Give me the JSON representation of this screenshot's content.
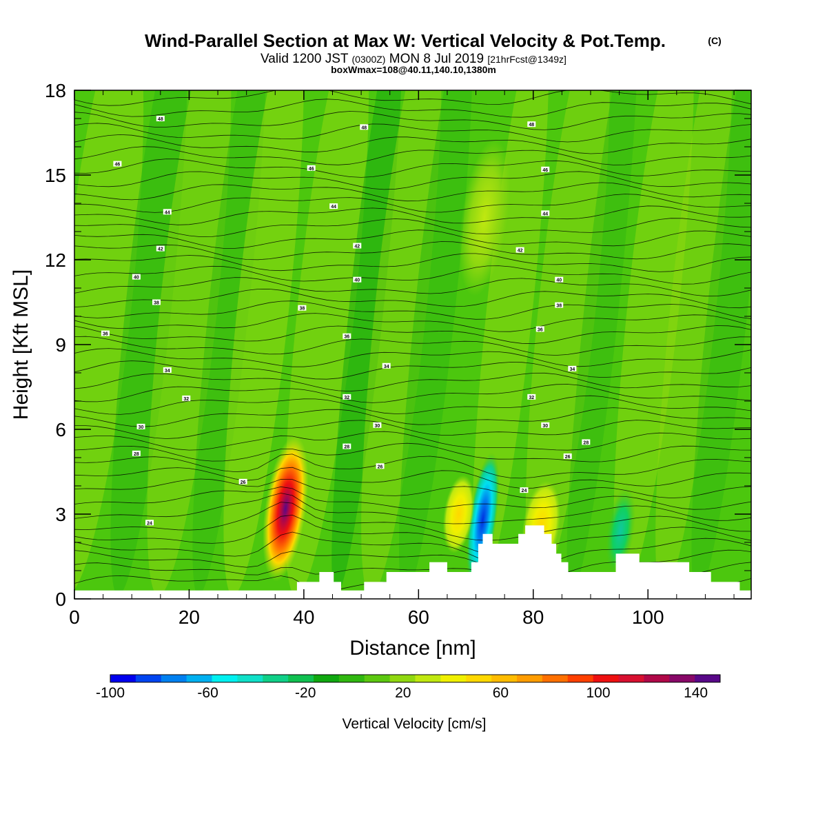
{
  "header": {
    "title": "Wind-Parallel Section at Max W: Vertical Velocity & Pot.Temp.",
    "copyright": "(C)",
    "valid_a": "Valid 1200 JST",
    "valid_b": "(0300Z)",
    "valid_c": "MON 8 Jul 2019",
    "valid_d": "[21hrFcst@1349z]",
    "box": "boxWmax=108@40.11,140.10,1380m"
  },
  "colors": {
    "background_green": "#4cc70e",
    "updraft_red": "#e01010",
    "downdraft_blue": "#1040e0",
    "terrain": "#ffffff",
    "contour": "#000000"
  },
  "chart_data": {
    "type": "heatmap",
    "xlabel": "Distance [nm]",
    "ylabel": "Height [Kft MSL]",
    "xlim": [
      0,
      118
    ],
    "ylim": [
      0,
      18
    ],
    "x_ticks": [
      "0",
      "20",
      "40",
      "60",
      "80",
      "100"
    ],
    "y_ticks": [
      "0",
      "3",
      "6",
      "9",
      "12",
      "15",
      "18"
    ],
    "colorbar": {
      "label": "Vertical Velocity [cm/s]",
      "range": [
        -100,
        150
      ],
      "tick_labels": [
        "-100",
        "-60",
        "-20",
        "20",
        "60",
        "100",
        "140"
      ],
      "colors": [
        "#0000ee",
        "#0044f0",
        "#0080f0",
        "#00b0f0",
        "#00f0f0",
        "#10e0c8",
        "#10d088",
        "#10c050",
        "#10a810",
        "#30b810",
        "#5cc810",
        "#90d810",
        "#c0e810",
        "#f0f000",
        "#ffd800",
        "#ffbc00",
        "#ff9c00",
        "#ff7000",
        "#ff4000",
        "#ee1010",
        "#d81030",
        "#b00848",
        "#880868",
        "#580888"
      ]
    },
    "terrain_nm_kft": [
      [
        0,
        0.3
      ],
      [
        38.8,
        0.3
      ],
      [
        38.8,
        0.6
      ],
      [
        42.7,
        0.6
      ],
      [
        42.7,
        0.95
      ],
      [
        45.2,
        0.95
      ],
      [
        45.2,
        0.6
      ],
      [
        46.5,
        0.6
      ],
      [
        46.5,
        0.3
      ],
      [
        50.5,
        0.3
      ],
      [
        50.5,
        0.6
      ],
      [
        54.4,
        0.6
      ],
      [
        54.4,
        0.95
      ],
      [
        61.9,
        0.95
      ],
      [
        61.9,
        1.3
      ],
      [
        65,
        1.3
      ],
      [
        65,
        0.95
      ],
      [
        69.2,
        0.95
      ],
      [
        69.2,
        1.3
      ],
      [
        70.4,
        1.3
      ],
      [
        70.4,
        1.95
      ],
      [
        71.2,
        1.95
      ],
      [
        71.2,
        2.3
      ],
      [
        72.9,
        2.3
      ],
      [
        72.9,
        1.95
      ],
      [
        77.4,
        1.95
      ],
      [
        77.4,
        2.3
      ],
      [
        78.6,
        2.3
      ],
      [
        78.6,
        2.6
      ],
      [
        81.9,
        2.6
      ],
      [
        81.9,
        2.3
      ],
      [
        83.2,
        2.3
      ],
      [
        83.2,
        1.95
      ],
      [
        84.0,
        1.95
      ],
      [
        84.0,
        1.6
      ],
      [
        84.9,
        1.6
      ],
      [
        84.9,
        1.3
      ],
      [
        86.1,
        1.3
      ],
      [
        86.1,
        0.95
      ],
      [
        94.4,
        0.95
      ],
      [
        94.4,
        1.6
      ],
      [
        98.5,
        1.6
      ],
      [
        98.5,
        1.3
      ],
      [
        107.2,
        1.3
      ],
      [
        107.2,
        0.95
      ],
      [
        111,
        0.95
      ],
      [
        111,
        0.6
      ],
      [
        116,
        0.6
      ],
      [
        116,
        0.3
      ],
      [
        118,
        0.3
      ]
    ],
    "updraft_cores": [
      {
        "x": 36.8,
        "y": 3.2,
        "w": 140
      },
      {
        "x": 71.2,
        "y": 2.8,
        "w": -80
      },
      {
        "x": 81.4,
        "y": 2.6,
        "w": 40
      },
      {
        "x": 95.2,
        "y": 2.4,
        "w": -40
      },
      {
        "x": 71.5,
        "y": 13.5,
        "w": 25
      },
      {
        "x": 67.0,
        "y": 3.0,
        "w": 30
      }
    ],
    "theta_labels": [
      {
        "x": 15,
        "y": 17.0,
        "v": "48"
      },
      {
        "x": 50.5,
        "y": 16.7,
        "v": "48"
      },
      {
        "x": 79.7,
        "y": 16.8,
        "v": "48"
      },
      {
        "x": 7.5,
        "y": 15.4,
        "v": "46"
      },
      {
        "x": 41.3,
        "y": 15.25,
        "v": "46"
      },
      {
        "x": 82.1,
        "y": 15.2,
        "v": "46"
      },
      {
        "x": 16.2,
        "y": 13.7,
        "v": "44"
      },
      {
        "x": 45.2,
        "y": 13.9,
        "v": "44"
      },
      {
        "x": 82.1,
        "y": 13.65,
        "v": "44"
      },
      {
        "x": 15,
        "y": 12.4,
        "v": "42"
      },
      {
        "x": 49.3,
        "y": 12.5,
        "v": "42"
      },
      {
        "x": 77.7,
        "y": 12.35,
        "v": "42"
      },
      {
        "x": 10.8,
        "y": 11.4,
        "v": "40"
      },
      {
        "x": 49.3,
        "y": 11.3,
        "v": "40"
      },
      {
        "x": 84.5,
        "y": 11.3,
        "v": "40"
      },
      {
        "x": 14.3,
        "y": 10.5,
        "v": "38"
      },
      {
        "x": 39.7,
        "y": 10.3,
        "v": "38"
      },
      {
        "x": 84.5,
        "y": 10.4,
        "v": "38"
      },
      {
        "x": 5.4,
        "y": 9.4,
        "v": "36"
      },
      {
        "x": 47.5,
        "y": 9.3,
        "v": "36"
      },
      {
        "x": 81.2,
        "y": 9.55,
        "v": "36"
      },
      {
        "x": 16.2,
        "y": 8.1,
        "v": "34"
      },
      {
        "x": 54.4,
        "y": 8.25,
        "v": "34"
      },
      {
        "x": 86.8,
        "y": 8.15,
        "v": "34"
      },
      {
        "x": 19.5,
        "y": 7.1,
        "v": "32"
      },
      {
        "x": 47.5,
        "y": 7.15,
        "v": "32"
      },
      {
        "x": 79.7,
        "y": 7.15,
        "v": "32"
      },
      {
        "x": 11.6,
        "y": 6.1,
        "v": "30"
      },
      {
        "x": 52.8,
        "y": 6.15,
        "v": "30"
      },
      {
        "x": 82.1,
        "y": 6.15,
        "v": "30"
      },
      {
        "x": 10.8,
        "y": 5.15,
        "v": "28"
      },
      {
        "x": 47.5,
        "y": 5.4,
        "v": "28"
      },
      {
        "x": 89.2,
        "y": 5.55,
        "v": "28"
      },
      {
        "x": 29.4,
        "y": 4.15,
        "v": "26"
      },
      {
        "x": 53.3,
        "y": 4.7,
        "v": "26"
      },
      {
        "x": 86.0,
        "y": 5.05,
        "v": "26"
      },
      {
        "x": 13.1,
        "y": 2.7,
        "v": "24"
      },
      {
        "x": 78.4,
        "y": 3.85,
        "v": "24"
      }
    ]
  }
}
